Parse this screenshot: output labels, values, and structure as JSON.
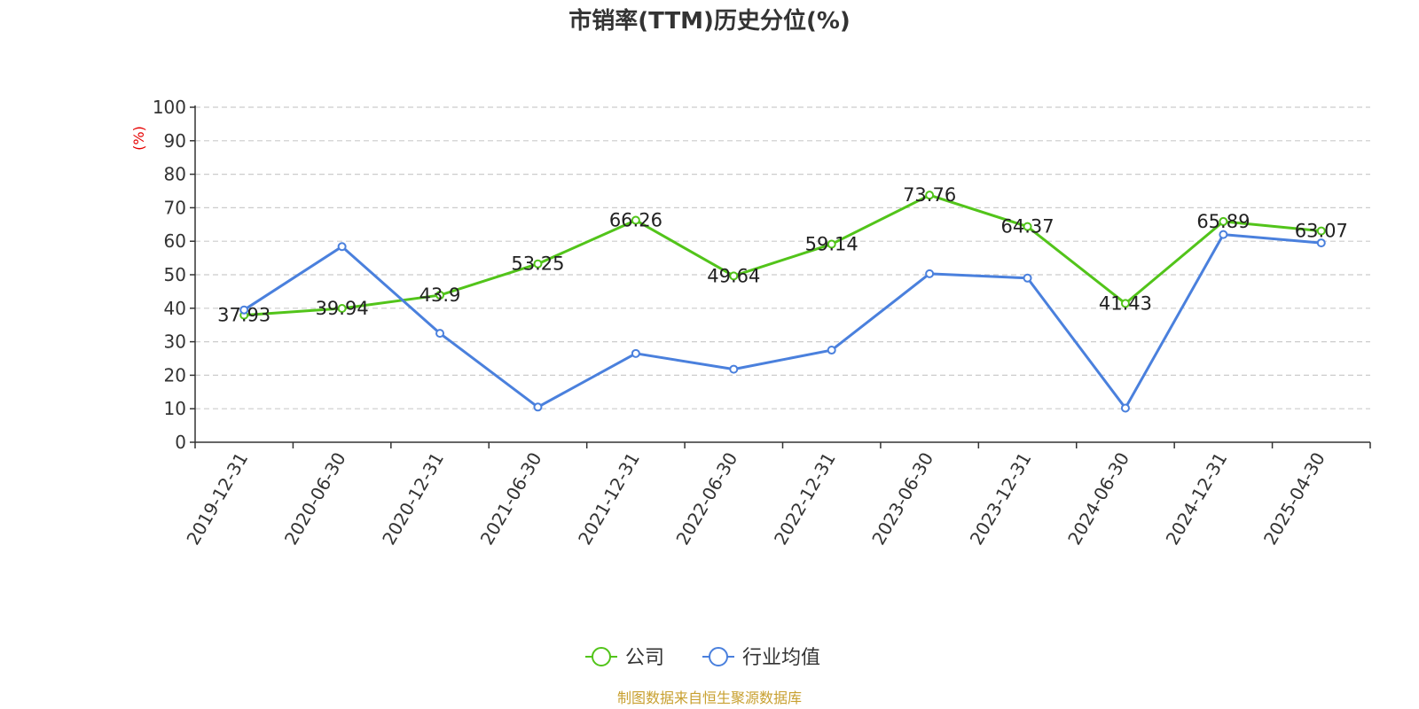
{
  "chart_data": {
    "type": "line",
    "title": "市销率(TTM)历史分位(%)",
    "ylabel": "(%)",
    "xlabel": "",
    "ylim": [
      0,
      100
    ],
    "yticks": [
      0,
      10,
      20,
      30,
      40,
      50,
      60,
      70,
      80,
      90,
      100
    ],
    "categories": [
      "2019-12-31",
      "2020-06-30",
      "2020-12-31",
      "2021-06-30",
      "2021-12-31",
      "2022-06-30",
      "2022-12-31",
      "2023-06-30",
      "2023-12-31",
      "2024-06-30",
      "2024-12-31",
      "2025-04-30"
    ],
    "grid": true,
    "legend_position": "bottom",
    "series": [
      {
        "name": "公司",
        "color": "#52c41a",
        "show_labels": true,
        "values": [
          37.93,
          39.94,
          43.9,
          53.25,
          66.26,
          49.64,
          59.14,
          73.76,
          64.37,
          41.43,
          65.89,
          63.07
        ]
      },
      {
        "name": "行业均值",
        "color": "#4a80dd",
        "show_labels": false,
        "values": [
          39.5,
          58.4,
          32.5,
          10.5,
          26.5,
          21.8,
          27.5,
          50.3,
          49.0,
          10.2,
          62.0,
          59.5
        ]
      }
    ],
    "source": "制图数据来自恒生聚源数据库",
    "colors": {
      "axis": "#333333",
      "grid": "#cccccc",
      "ylabel": "#e60000",
      "source": "#c8a030"
    }
  }
}
